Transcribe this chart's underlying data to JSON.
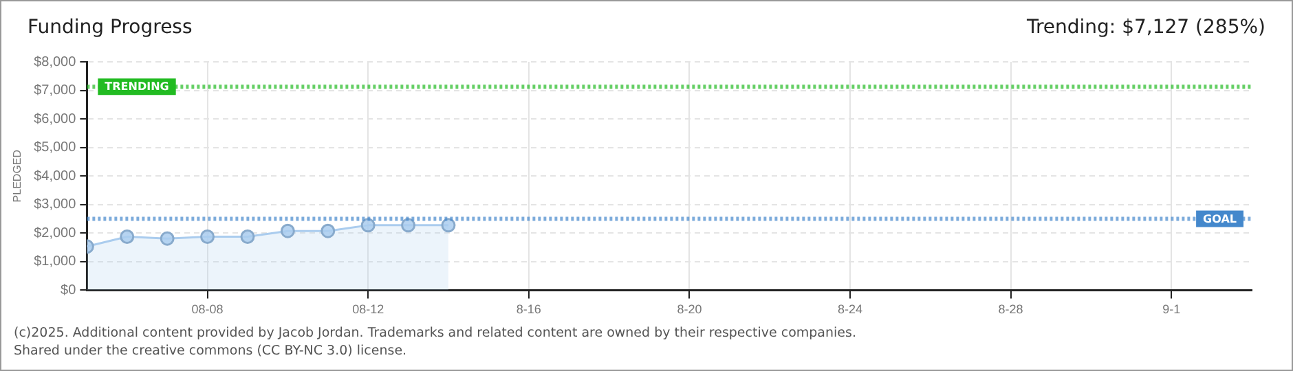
{
  "chart_data": {
    "type": "area",
    "title": "Funding Progress",
    "subtitle": "Trending: $7,127 (285%)",
    "ylabel": "PLEDGED",
    "x": [
      "2025-08-05",
      "2025-08-06",
      "2025-08-07",
      "2025-08-08",
      "2025-08-09",
      "2025-08-10",
      "2025-08-11",
      "2025-08-12",
      "2025-08-13",
      "2025-08-14"
    ],
    "series": [
      {
        "color": "#aaccee",
        "values": [
          1530,
          1875,
          1810,
          1875,
          1875,
          2075,
          2075,
          2275,
          2275,
          2275
        ]
      }
    ],
    "xlim": [
      "2025-08-05",
      "2025-09-03"
    ],
    "xticks": [
      {
        "value": "2025-08-08",
        "label": "08-08"
      },
      {
        "value": "2025-08-12",
        "label": "08-12"
      },
      {
        "value": "2025-08-16",
        "label": "8-16"
      },
      {
        "value": "2025-08-20",
        "label": "8-20"
      },
      {
        "value": "2025-08-24",
        "label": "8-24"
      },
      {
        "value": "2025-08-28",
        "label": "8-28"
      },
      {
        "value": "2025-09-01",
        "label": "9-1"
      }
    ],
    "ylim": [
      0,
      8000
    ],
    "yticks": [
      {
        "value": 0,
        "label": "$0"
      },
      {
        "value": 1000,
        "label": "$1,000"
      },
      {
        "value": 2000,
        "label": "$2,000"
      },
      {
        "value": 3000,
        "label": "$3,000"
      },
      {
        "value": 4000,
        "label": "$4,000"
      },
      {
        "value": 5000,
        "label": "$5,000"
      },
      {
        "value": 6000,
        "label": "$6,000"
      },
      {
        "value": 7000,
        "label": "$7,000"
      },
      {
        "value": 8000,
        "label": "$8,000"
      }
    ],
    "ref_lines": [
      {
        "axis": "y",
        "value": 7127,
        "label": "TRENDING",
        "color": "#22bb22",
        "line_style": "dotted"
      },
      {
        "axis": "y",
        "value": 2500,
        "label": "GOAL",
        "color": "#4488cc",
        "line_style": "dotted"
      }
    ],
    "grid": true,
    "marker": "circle",
    "line_style": "solid",
    "legend": false,
    "annotations": [
      "(c)2025. Additional content provided by Jacob Jordan. Trademarks and related content are owned by their respective companies.",
      "Shared under the creative commons (CC BY-NC 3.0) license."
    ]
  }
}
